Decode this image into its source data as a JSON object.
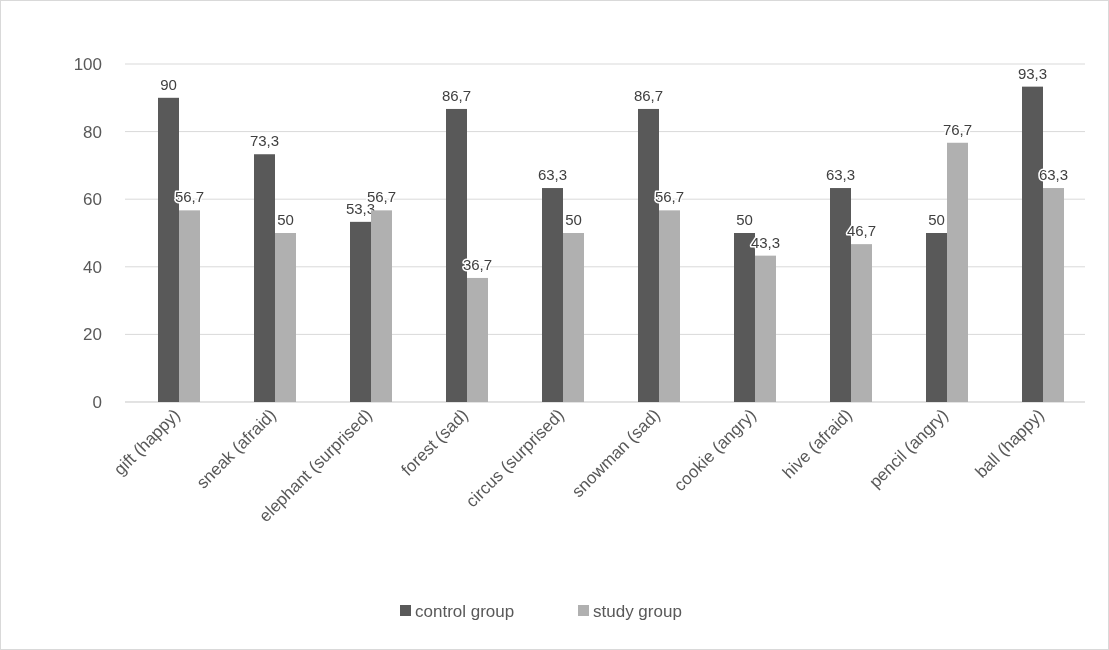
{
  "chart_data": {
    "type": "bar",
    "categories": [
      "gift (happy)",
      "sneak (afraid)",
      "elephant (surprised)",
      "forest (sad)",
      "circus (surprised)",
      "snowman (sad)",
      "cookie (angry)",
      "hive (afraid)",
      "pencil (angry)",
      "ball (happy)"
    ],
    "series": [
      {
        "name": "control group",
        "color": "#595959",
        "values": [
          90,
          73.3,
          53.3,
          86.7,
          63.3,
          86.7,
          50,
          63.3,
          50,
          93.3
        ],
        "value_labels": [
          "90",
          "73,3",
          "53,3",
          "86,7",
          "63,3",
          "86,7",
          "50",
          "63,3",
          "50",
          "93,3"
        ]
      },
      {
        "name": "study group",
        "color": "#b0b0b0",
        "values": [
          56.7,
          50,
          56.7,
          36.7,
          50,
          56.7,
          43.3,
          46.7,
          76.7,
          63.3
        ],
        "value_labels": [
          "56,7",
          "50",
          "56,7",
          "36,7",
          "50",
          "56,7",
          "43,3",
          "46,7",
          "76,7",
          "63,3"
        ]
      }
    ],
    "ylim": [
      0,
      100
    ],
    "yticks": [
      0,
      20,
      40,
      60,
      80,
      100
    ],
    "grid": "y",
    "legend": "bottom"
  }
}
